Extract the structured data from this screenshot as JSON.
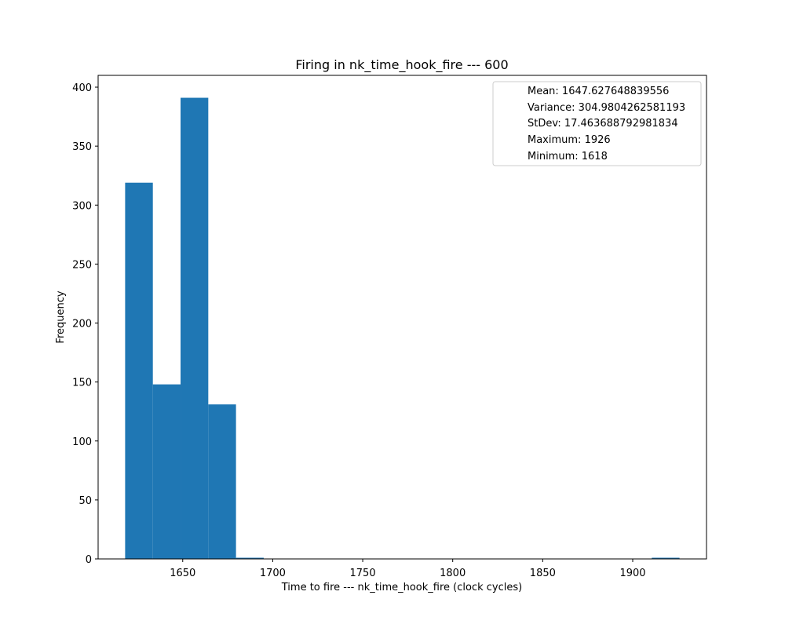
{
  "chart_data": {
    "type": "bar",
    "title": "Firing in nk_time_hook_fire --- 600",
    "xlabel": "Time to fire --- nk_time_hook_fire (clock cycles)",
    "ylabel": "Frequency",
    "xlim": [
      1603,
      1941
    ],
    "ylim": [
      0,
      410
    ],
    "xticks": [
      1650,
      1700,
      1750,
      1800,
      1850,
      1900
    ],
    "yticks": [
      0,
      50,
      100,
      150,
      200,
      250,
      300,
      350,
      400
    ],
    "grid": false,
    "bar_color": "#1f77b4",
    "bins": [
      {
        "start": 1618.0,
        "end": 1633.4,
        "value": 319
      },
      {
        "start": 1633.4,
        "end": 1648.8,
        "value": 148
      },
      {
        "start": 1648.8,
        "end": 1664.2,
        "value": 391
      },
      {
        "start": 1664.2,
        "end": 1679.6,
        "value": 131
      },
      {
        "start": 1679.6,
        "end": 1695.0,
        "value": 1
      },
      {
        "start": 1695.0,
        "end": 1710.4,
        "value": 0
      },
      {
        "start": 1710.4,
        "end": 1725.8,
        "value": 0
      },
      {
        "start": 1725.8,
        "end": 1741.2,
        "value": 0
      },
      {
        "start": 1741.2,
        "end": 1756.6,
        "value": 0
      },
      {
        "start": 1756.6,
        "end": 1772.0,
        "value": 0
      },
      {
        "start": 1772.0,
        "end": 1787.4,
        "value": 0
      },
      {
        "start": 1787.4,
        "end": 1802.8,
        "value": 0
      },
      {
        "start": 1802.8,
        "end": 1818.2,
        "value": 0
      },
      {
        "start": 1818.2,
        "end": 1833.6,
        "value": 0
      },
      {
        "start": 1833.6,
        "end": 1849.0,
        "value": 0
      },
      {
        "start": 1849.0,
        "end": 1864.4,
        "value": 0
      },
      {
        "start": 1864.4,
        "end": 1879.8,
        "value": 0
      },
      {
        "start": 1879.8,
        "end": 1895.2,
        "value": 0
      },
      {
        "start": 1895.2,
        "end": 1910.6,
        "value": 0
      },
      {
        "start": 1910.6,
        "end": 1926.0,
        "value": 1
      }
    ],
    "legend": {
      "placement": "top-right",
      "entries": [
        "Mean: 1647.627648839556",
        "Variance: 304.9804262581193",
        "StDev: 17.463688792981834",
        "Maximum: 1926",
        "Minimum: 1618"
      ]
    }
  }
}
